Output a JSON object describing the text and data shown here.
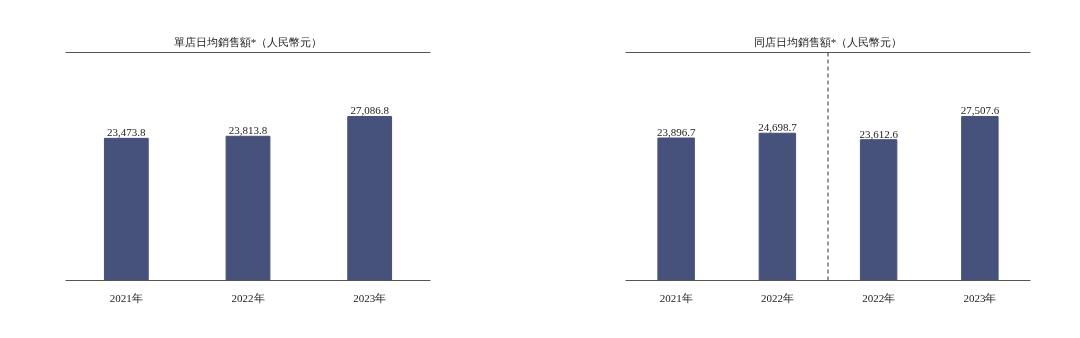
{
  "chart_data": [
    {
      "type": "bar",
      "title": "單店日均銷售額*（人民幣元）",
      "categories": [
        "2021年",
        "2022年",
        "2023年"
      ],
      "values": [
        23473.8,
        23813.8,
        27086.8
      ],
      "value_labels": [
        "23,473.8",
        "23,813.8",
        "27,086.8"
      ],
      "color": "#46527c",
      "tick_labels": "x",
      "grid": false
    },
    {
      "type": "bar",
      "title": "同店日均銷售額*（人民幣元）",
      "categories": [
        "2021年",
        "2022年",
        "2022年",
        "2023年"
      ],
      "values": [
        23896.7,
        24698.7,
        23612.6,
        27507.6
      ],
      "value_labels": [
        "23,896.7",
        "24,698.7",
        "23,612.6",
        "27,507.6"
      ],
      "color": "#46527c",
      "tick_labels": "x",
      "grid": false
    }
  ]
}
